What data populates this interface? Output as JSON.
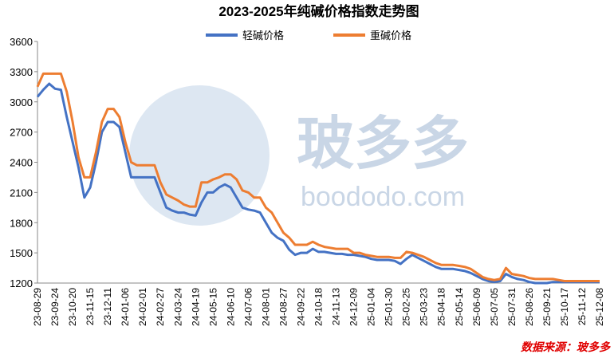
{
  "chart_data": {
    "type": "line",
    "title": "2023-2025年纯碱价格指数走势图",
    "source": "数据来源：玻多多",
    "watermark": [
      "玻多多",
      "boododo.com"
    ],
    "legend": "top",
    "categories": [
      "23-08-29",
      null,
      null,
      "23-09-24",
      null,
      null,
      "23-10-20",
      null,
      null,
      "23-11-15",
      null,
      null,
      "23-12-11",
      null,
      null,
      "24-01-06",
      null,
      null,
      "24-02-01",
      null,
      null,
      "24-02-27",
      null,
      null,
      "24-03-24",
      null,
      null,
      "24-04-19",
      null,
      null,
      "24-05-15",
      null,
      null,
      "24-06-10",
      null,
      null,
      "24-07-06",
      null,
      null,
      "24-08-01",
      null,
      null,
      "24-08-27",
      null,
      null,
      "24-09-22",
      null,
      null,
      "24-10-18",
      null,
      null,
      "24-11-13",
      null,
      null,
      "24-12-09",
      null,
      null,
      "25-01-04",
      null,
      null,
      "25-01-30",
      null,
      null,
      "25-02-25",
      null,
      null,
      "25-03-23",
      null,
      null,
      "25-04-18",
      null,
      null,
      "25-05-14",
      null,
      null,
      "25-06-09",
      null,
      null,
      "25-07-05",
      null,
      null,
      "25-07-31",
      null,
      null,
      "25-08-26",
      null,
      null,
      "25-09-21",
      null,
      null,
      "25-10-17",
      null,
      null,
      "25-11-12",
      null,
      null,
      "25-12-08"
    ],
    "series": [
      {
        "name": "轻碱价格",
        "color": "#4472c4",
        "values": [
          3050,
          3120,
          3180,
          3130,
          3120,
          2850,
          2600,
          2350,
          2050,
          2150,
          2400,
          2700,
          2800,
          2800,
          2750,
          2500,
          2250,
          2250,
          2250,
          2250,
          2250,
          2100,
          1950,
          1920,
          1900,
          1900,
          1880,
          1870,
          2000,
          2100,
          2100,
          2150,
          2180,
          2150,
          2050,
          1950,
          1930,
          1920,
          1900,
          1800,
          1700,
          1650,
          1620,
          1530,
          1480,
          1500,
          1500,
          1540,
          1510,
          1510,
          1500,
          1490,
          1490,
          1480,
          1480,
          1470,
          1460,
          1440,
          1430,
          1430,
          1430,
          1420,
          1390,
          1440,
          1480,
          1450,
          1420,
          1390,
          1360,
          1340,
          1340,
          1340,
          1330,
          1320,
          1300,
          1270,
          1240,
          1220,
          1210,
          1220,
          1290,
          1260,
          1240,
          1230,
          1210,
          1200,
          1200,
          1200,
          1210,
          1210,
          1210,
          1210,
          1210,
          1210,
          1210,
          1210,
          1210
        ]
      },
      {
        "name": "重碱价格",
        "color": "#ed7d31",
        "values": [
          3150,
          3280,
          3280,
          3280,
          3280,
          3100,
          2800,
          2450,
          2250,
          2250,
          2500,
          2800,
          2930,
          2930,
          2850,
          2600,
          2400,
          2370,
          2370,
          2370,
          2370,
          2200,
          2080,
          2050,
          2020,
          1980,
          1960,
          1960,
          2200,
          2200,
          2230,
          2250,
          2280,
          2280,
          2230,
          2120,
          2100,
          2050,
          2050,
          1950,
          1900,
          1800,
          1700,
          1650,
          1580,
          1580,
          1580,
          1610,
          1580,
          1560,
          1550,
          1540,
          1540,
          1540,
          1500,
          1500,
          1480,
          1470,
          1460,
          1460,
          1460,
          1450,
          1450,
          1510,
          1500,
          1480,
          1460,
          1430,
          1400,
          1380,
          1380,
          1380,
          1370,
          1360,
          1340,
          1300,
          1260,
          1240,
          1230,
          1240,
          1350,
          1290,
          1280,
          1270,
          1250,
          1240,
          1240,
          1240,
          1240,
          1230,
          1220,
          1220,
          1220,
          1220,
          1220,
          1220,
          1220
        ]
      }
    ],
    "ylim": [
      1200,
      3600
    ],
    "yticks": [
      1200,
      1500,
      1800,
      2100,
      2400,
      2700,
      3000,
      3300,
      3600
    ]
  }
}
